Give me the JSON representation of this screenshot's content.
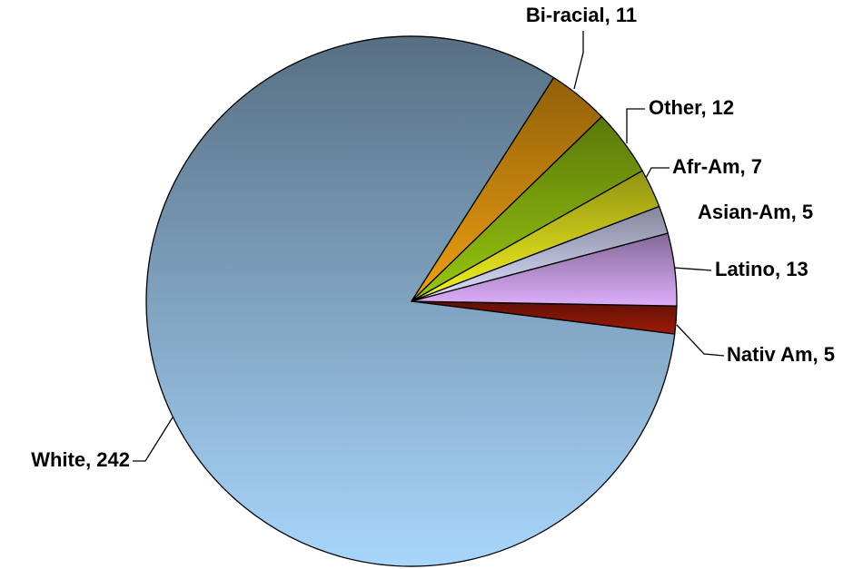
{
  "chart_data": {
    "type": "pie",
    "categories": [
      "Nativ Am",
      "White",
      "Bi-racial",
      "Other",
      "Afr-Am",
      "Asian-Am",
      "Latino"
    ],
    "values": [
      5,
      242,
      11,
      12,
      7,
      5,
      13
    ],
    "value_labels": [
      "Nativ Am, 5",
      "White, 242",
      "Bi-racial, 11",
      "Other, 12",
      "Afr-Am, 7",
      "Asian-Am, 5",
      "Latino, 13"
    ],
    "colors": [
      "#a01a08",
      "#a8d6fc",
      "#f0a010",
      "#98c810",
      "#f4f420",
      "#dce0ff",
      "#dcaefa"
    ]
  }
}
